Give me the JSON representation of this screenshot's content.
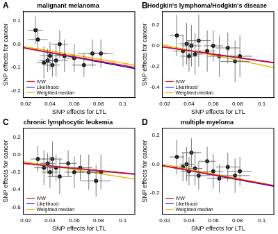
{
  "chart_data": [
    {
      "type": "scatter",
      "panel": "A",
      "title": "malignant melanoma",
      "x_label": "SNP effects for LTL",
      "y_label": "SNP effects for cancer",
      "xlim": [
        0.018,
        0.11
      ],
      "xticks": [
        0.02,
        0.04,
        0.06,
        0.08,
        0.1
      ],
      "ylim": [
        -0.23,
        0.14
      ],
      "yticks": [
        -0.2,
        -0.1,
        {
          "value": 0,
          "label": "0.0"
        },
        0.1
      ],
      "grid": false,
      "legend": "bottom-left",
      "points": {
        "color": "#000000",
        "x": [
          0.028,
          0.03,
          0.035,
          0.038,
          0.04,
          0.042,
          0.045,
          0.048,
          0.052,
          0.06,
          0.068,
          0.075,
          0.082
        ],
        "values": [
          0.06,
          0.02,
          -0.08,
          -0.07,
          -0.05,
          -0.09,
          -0.07,
          0.0,
          -0.05,
          -0.06,
          -0.09,
          -0.04,
          -0.04
        ],
        "x_error": [
          0.006,
          0.008,
          0.006,
          0.007,
          0.008,
          0.006,
          0.01,
          0.007,
          0.008,
          0.01,
          0.01,
          0.012,
          0.01
        ],
        "y_error": [
          0.06,
          0.05,
          0.07,
          0.05,
          0.06,
          0.05,
          0.07,
          0.06,
          0.07,
          0.06,
          0.05,
          0.06,
          0.06
        ]
      },
      "series": [
        {
          "name": "IVW",
          "color": "#ff0000",
          "x": [
            0.018,
            0.11
          ],
          "values": [
            -0.015,
            -0.1
          ]
        },
        {
          "name": "Likelihood",
          "color": "#0000ff",
          "x": [
            0.018,
            0.11
          ],
          "values": [
            -0.015,
            -0.105
          ]
        },
        {
          "name": "Weighted median",
          "color": "#f5b400",
          "x": [
            0.018,
            0.11
          ],
          "values": [
            -0.01,
            -0.09
          ]
        }
      ]
    },
    {
      "type": "scatter",
      "panel": "B",
      "title": "Hodgkin's lymphoma/Hodgkin's disease",
      "x_label": "SNP effects for LTL",
      "y_label": "SNP effects for cancer",
      "xlim": [
        0.018,
        0.11
      ],
      "xticks": [
        0.02,
        0.04,
        0.06,
        0.08,
        0.1
      ],
      "ylim": [
        -0.5,
        0.33
      ],
      "yticks": [
        -0.4,
        -0.2,
        {
          "value": 0,
          "label": "0.0"
        },
        0.2
      ],
      "grid": false,
      "legend": "bottom-left",
      "points": {
        "color": "#000000",
        "x": [
          0.03,
          0.035,
          0.038,
          0.04,
          0.042,
          0.045,
          0.048,
          0.055,
          0.06,
          0.065,
          0.072,
          0.078,
          0.082
        ],
        "values": [
          0.1,
          -0.05,
          0.02,
          -0.1,
          0.0,
          -0.08,
          0.05,
          -0.05,
          0.0,
          -0.1,
          -0.02,
          -0.15,
          -0.1
        ],
        "x_error": [
          0.006,
          0.008,
          0.006,
          0.007,
          0.008,
          0.006,
          0.01,
          0.007,
          0.008,
          0.01,
          0.01,
          0.012,
          0.01
        ],
        "y_error": [
          0.2,
          0.15,
          0.2,
          0.15,
          0.2,
          0.2,
          0.25,
          0.2,
          0.15,
          0.2,
          0.15,
          0.2,
          0.2
        ]
      },
      "series": [
        {
          "name": "IVW",
          "color": "#ff0000",
          "x": [
            0.018,
            0.11
          ],
          "values": [
            -0.01,
            -0.16
          ]
        },
        {
          "name": "Likelihood",
          "color": "#0000ff",
          "x": [
            0.018,
            0.11
          ],
          "values": [
            -0.01,
            -0.165
          ]
        },
        {
          "name": "Weighted median",
          "color": "#f5b400",
          "x": [
            0.018,
            0.11
          ],
          "values": [
            0.01,
            -0.21
          ]
        }
      ]
    },
    {
      "type": "scatter",
      "panel": "C",
      "title": "chronic lymphocytic leukemia",
      "x_label": "SNP effects for LTL",
      "y_label": "SNP effects for cancer",
      "xlim": [
        0.018,
        0.11
      ],
      "xticks": [
        0.02,
        0.04,
        0.06,
        0.08,
        0.1
      ],
      "ylim": [
        -0.68,
        0.3
      ],
      "yticks": [
        -0.6,
        -0.4,
        -0.2,
        {
          "value": 0,
          "label": "0.0"
        },
        0.2
      ],
      "grid": false,
      "legend": "bottom-left",
      "points": {
        "color": "#000000",
        "x": [
          0.03,
          0.035,
          0.038,
          0.04,
          0.042,
          0.045,
          0.048,
          0.055,
          0.06,
          0.065,
          0.072,
          0.078,
          0.082
        ],
        "values": [
          -0.05,
          -0.15,
          -0.1,
          -0.2,
          -0.05,
          -0.15,
          -0.25,
          -0.1,
          -0.2,
          -0.15,
          -0.2,
          -0.3,
          -0.2
        ],
        "x_error": [
          0.006,
          0.008,
          0.006,
          0.007,
          0.008,
          0.006,
          0.01,
          0.007,
          0.008,
          0.01,
          0.01,
          0.012,
          0.01
        ],
        "y_error": [
          0.15,
          0.2,
          0.12,
          0.18,
          0.2,
          0.15,
          0.2,
          0.15,
          0.18,
          0.15,
          0.2,
          0.18,
          0.2
        ]
      },
      "series": [
        {
          "name": "IVW",
          "color": "#ff0000",
          "x": [
            0.018,
            0.11
          ],
          "values": [
            -0.1,
            -0.22
          ]
        },
        {
          "name": "Likelihood",
          "color": "#0000ff",
          "x": [
            0.018,
            0.11
          ],
          "values": [
            -0.1,
            -0.225
          ]
        },
        {
          "name": "Weighted median",
          "color": "#f5b400",
          "x": [
            0.018,
            0.11
          ],
          "values": [
            -0.08,
            -0.28
          ]
        }
      ]
    },
    {
      "type": "scatter",
      "panel": "D",
      "title": "multiple myeloma",
      "x_label": "SNP effects for LTL",
      "y_label": "SNP effects for cancer",
      "xlim": [
        0.018,
        0.11
      ],
      "xticks": [
        0.02,
        0.04,
        0.06,
        0.08,
        0.1
      ],
      "ylim": [
        -0.35,
        0.25
      ],
      "yticks": [
        -0.2,
        {
          "value": 0,
          "label": "0.0"
        },
        0.2
      ],
      "grid": false,
      "legend": "bottom-left",
      "points": {
        "color": "#000000",
        "x": [
          0.03,
          0.035,
          0.038,
          0.04,
          0.042,
          0.045,
          0.048,
          0.055,
          0.06,
          0.065,
          0.072,
          0.078,
          0.082
        ],
        "values": [
          0.05,
          -0.02,
          0.0,
          -0.05,
          0.08,
          -0.03,
          -0.08,
          0.02,
          -0.05,
          -0.1,
          -0.02,
          -0.08,
          -0.05
        ],
        "x_error": [
          0.006,
          0.008,
          0.006,
          0.007,
          0.008,
          0.006,
          0.01,
          0.007,
          0.008,
          0.01,
          0.01,
          0.012,
          0.01
        ],
        "y_error": [
          0.12,
          0.1,
          0.12,
          0.1,
          0.1,
          0.12,
          0.1,
          0.1,
          0.12,
          0.1,
          0.1,
          0.12,
          0.1
        ]
      },
      "series": [
        {
          "name": "IVW",
          "color": "#ff0000",
          "x": [
            0.018,
            0.11
          ],
          "values": [
            -0.01,
            -0.15
          ]
        },
        {
          "name": "Likelihood",
          "color": "#0000ff",
          "x": [
            0.018,
            0.11
          ],
          "values": [
            -0.01,
            -0.155
          ]
        },
        {
          "name": "Weighted median",
          "color": "#f5b400",
          "x": [
            0.018,
            0.11
          ],
          "values": [
            0,
            -0.15
          ]
        }
      ]
    }
  ]
}
